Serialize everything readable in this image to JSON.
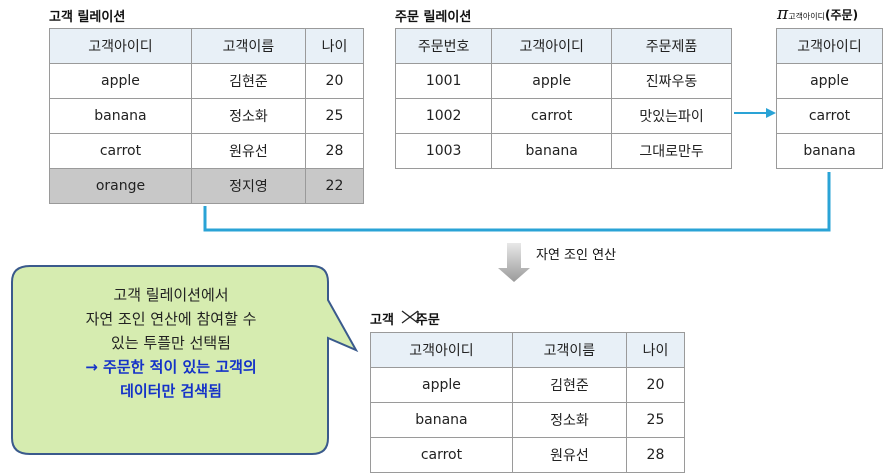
{
  "customer_relation": {
    "caption": "고객 릴레이션",
    "headers": [
      "고객아이디",
      "고객이름",
      "나이"
    ],
    "rows": [
      [
        "apple",
        "김현준",
        "20"
      ],
      [
        "banana",
        "정소화",
        "25"
      ],
      [
        "carrot",
        "원유선",
        "28"
      ],
      [
        "orange",
        "정지영",
        "22"
      ]
    ]
  },
  "order_relation": {
    "caption": "주문 릴레이션",
    "headers": [
      "주문번호",
      "고객아이디",
      "주문제품"
    ],
    "rows": [
      [
        "1001",
        "apple",
        "진짜우동"
      ],
      [
        "1002",
        "carrot",
        "맛있는파이"
      ],
      [
        "1003",
        "banana",
        "그대로만두"
      ]
    ]
  },
  "projection": {
    "symbol": "π",
    "subscript": "고객아이디",
    "operand": "(주문)",
    "header": "고객아이디",
    "rows": [
      "apple",
      "carrot",
      "banana"
    ]
  },
  "operation_label": "자연 조인 연산",
  "join_result": {
    "caption_left": "고객",
    "caption_right": "주문",
    "headers": [
      "고객아이디",
      "고객이름",
      "나이"
    ],
    "rows": [
      [
        "apple",
        "김현준",
        "20"
      ],
      [
        "banana",
        "정소화",
        "25"
      ],
      [
        "carrot",
        "원유선",
        "28"
      ]
    ]
  },
  "callout": {
    "lines": [
      "고객 릴레이션에서",
      "자연 조인 연산에 참여할 수",
      "있는 투플만 선택됨"
    ],
    "emphasis_lines": [
      "→ 주문한 적이 있는 고객의",
      "데이터만 검색됨"
    ]
  },
  "colors": {
    "connector": "#2aa3d6",
    "header_bg": "#e8f0f7",
    "excluded_row_bg": "#c8c8c8",
    "callout_fill": "#d6ecb0",
    "callout_border": "#3a5a8c",
    "emphasis_text": "#1432c8"
  }
}
